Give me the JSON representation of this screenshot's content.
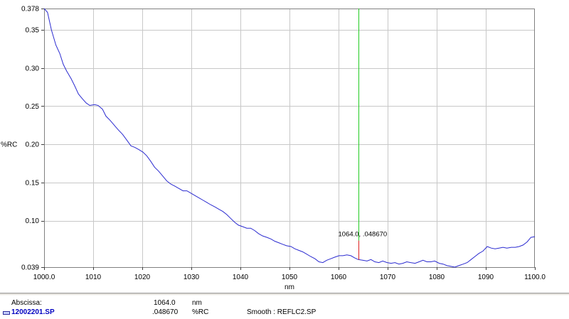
{
  "chart_data": {
    "type": "line",
    "title": "",
    "xlabel": "nm",
    "ylabel": "%RC",
    "xlim": [
      1000.0,
      1100.0
    ],
    "ylim": [
      0.039,
      0.378
    ],
    "x_ticks": [
      1000,
      1010,
      1020,
      1030,
      1040,
      1050,
      1060,
      1070,
      1080,
      1090,
      1100
    ],
    "x_tick_labels": [
      "1000.0",
      "1010",
      "1020",
      "1030",
      "1040",
      "1050",
      "1060",
      "1070",
      "1080",
      "1090",
      "1100.0"
    ],
    "y_ticks": [
      0.039,
      0.1,
      0.15,
      0.2,
      0.25,
      0.3,
      0.35,
      0.378
    ],
    "y_tick_labels": [
      "0.039",
      "0.10",
      "0.15",
      "0.20",
      "0.25",
      "0.30",
      "0.35",
      "0.378"
    ],
    "grid": true,
    "line_color": "#2b2bd0",
    "cursor_line_color": "#22cc22",
    "cursor_marker_color": "#dd2020",
    "series": [
      {
        "x": [
          1000.0,
          1000.7,
          1001.5,
          1002.4,
          1003.2,
          1003.9,
          1004.6,
          1005.5,
          1006.2,
          1007.0,
          1007.9,
          1008.6,
          1009.3,
          1010.3,
          1011.0,
          1011.9,
          1012.6,
          1013.5,
          1014.3,
          1015.1,
          1016.0,
          1016.8,
          1017.7,
          1018.5,
          1019.3,
          1020.1,
          1020.9,
          1021.7,
          1022.5,
          1023.3,
          1024.1,
          1025.0,
          1025.8,
          1026.7,
          1027.5,
          1028.3,
          1029.1,
          1029.9,
          1030.7,
          1031.5,
          1032.3,
          1033.1,
          1033.9,
          1034.8,
          1035.6,
          1036.4,
          1037.2,
          1038.0,
          1038.8,
          1039.6,
          1040.5,
          1041.3,
          1042.1,
          1042.9,
          1043.7,
          1044.5,
          1045.4,
          1046.2,
          1047.0,
          1047.8,
          1048.6,
          1049.4,
          1050.3,
          1051.1,
          1051.9,
          1052.7,
          1053.5,
          1054.3,
          1055.2,
          1056.0,
          1056.8,
          1057.6,
          1058.4,
          1059.2,
          1060.1,
          1060.9,
          1061.7,
          1062.5,
          1063.3,
          1064.0,
          1064.9,
          1065.8,
          1066.6,
          1067.4,
          1068.2,
          1069.0,
          1069.9,
          1070.7,
          1071.5,
          1072.3,
          1073.1,
          1073.9,
          1074.7,
          1075.6,
          1076.4,
          1077.2,
          1078.0,
          1078.8,
          1079.6,
          1080.5,
          1081.3,
          1082.1,
          1082.9,
          1083.7,
          1084.5,
          1085.4,
          1086.2,
          1087.0,
          1087.8,
          1088.6,
          1089.4,
          1090.3,
          1091.1,
          1091.9,
          1092.7,
          1093.5,
          1094.3,
          1095.2,
          1096.0,
          1096.8,
          1097.6,
          1098.4,
          1099.2,
          1100.0
        ],
        "y": [
          0.378,
          0.373,
          0.35,
          0.33,
          0.319,
          0.305,
          0.296,
          0.286,
          0.277,
          0.266,
          0.259,
          0.254,
          0.251,
          0.252,
          0.251,
          0.246,
          0.237,
          0.231,
          0.225,
          0.219,
          0.213,
          0.206,
          0.198,
          0.196,
          0.193,
          0.19,
          0.185,
          0.178,
          0.17,
          0.165,
          0.159,
          0.152,
          0.148,
          0.145,
          0.142,
          0.139,
          0.139,
          0.136,
          0.133,
          0.13,
          0.127,
          0.124,
          0.121,
          0.118,
          0.115,
          0.112,
          0.108,
          0.103,
          0.098,
          0.094,
          0.092,
          0.09,
          0.09,
          0.087,
          0.083,
          0.08,
          0.078,
          0.076,
          0.073,
          0.071,
          0.069,
          0.067,
          0.066,
          0.063,
          0.061,
          0.059,
          0.056,
          0.053,
          0.05,
          0.046,
          0.045,
          0.048,
          0.05,
          0.052,
          0.054,
          0.054,
          0.055,
          0.054,
          0.051,
          0.049,
          0.048,
          0.047,
          0.049,
          0.046,
          0.045,
          0.047,
          0.045,
          0.044,
          0.045,
          0.043,
          0.044,
          0.046,
          0.045,
          0.044,
          0.046,
          0.048,
          0.046,
          0.046,
          0.047,
          0.044,
          0.043,
          0.041,
          0.04,
          0.039,
          0.041,
          0.043,
          0.045,
          0.049,
          0.053,
          0.057,
          0.06,
          0.066,
          0.064,
          0.063,
          0.064,
          0.065,
          0.064,
          0.065,
          0.065,
          0.066,
          0.068,
          0.072,
          0.078,
          0.079
        ]
      }
    ],
    "cursor": {
      "x": 1064.0,
      "y": 0.04867,
      "label": "1064.0, .048670"
    }
  },
  "info_panel": {
    "abscissa_label": "Abscissa:",
    "abscissa_value": "1064.0",
    "abscissa_unit": "nm",
    "file_name": "12002201.SP",
    "ordinate_value": ".048670",
    "ordinate_unit": "%RC",
    "smooth_text": "Smooth : REFLC2.SP"
  }
}
